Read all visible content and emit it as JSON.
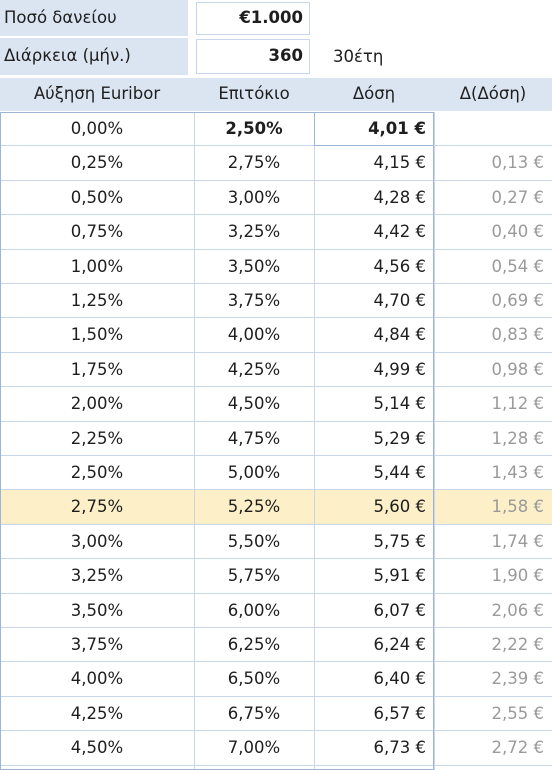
{
  "inputs": {
    "loan_label": "Ποσό δανείου",
    "loan_value": "€1.000",
    "duration_label": "Διάρκεια (μήν.)",
    "duration_value": "360",
    "duration_note": "30έτη"
  },
  "table": {
    "headers": [
      "Αύξηση Euribor",
      "Επιτόκιο",
      "Δόση",
      "Δ(Δόση)"
    ],
    "rows": [
      {
        "euribor": "0,00%",
        "rate": "2,50%",
        "payment": "4,01 €",
        "delta": ""
      },
      {
        "euribor": "0,25%",
        "rate": "2,75%",
        "payment": "4,15 €",
        "delta": "0,13 €"
      },
      {
        "euribor": "0,50%",
        "rate": "3,00%",
        "payment": "4,28 €",
        "delta": "0,27 €"
      },
      {
        "euribor": "0,75%",
        "rate": "3,25%",
        "payment": "4,42 €",
        "delta": "0,40 €"
      },
      {
        "euribor": "1,00%",
        "rate": "3,50%",
        "payment": "4,56 €",
        "delta": "0,54 €"
      },
      {
        "euribor": "1,25%",
        "rate": "3,75%",
        "payment": "4,70 €",
        "delta": "0,69 €"
      },
      {
        "euribor": "1,50%",
        "rate": "4,00%",
        "payment": "4,84 €",
        "delta": "0,83 €"
      },
      {
        "euribor": "1,75%",
        "rate": "4,25%",
        "payment": "4,99 €",
        "delta": "0,98 €"
      },
      {
        "euribor": "2,00%",
        "rate": "4,50%",
        "payment": "5,14 €",
        "delta": "1,12 €"
      },
      {
        "euribor": "2,25%",
        "rate": "4,75%",
        "payment": "5,29 €",
        "delta": "1,28 €"
      },
      {
        "euribor": "2,50%",
        "rate": "5,00%",
        "payment": "5,44 €",
        "delta": "1,43 €"
      },
      {
        "euribor": "2,75%",
        "rate": "5,25%",
        "payment": "5,60 €",
        "delta": "1,58 €"
      },
      {
        "euribor": "3,00%",
        "rate": "5,50%",
        "payment": "5,75 €",
        "delta": "1,74 €"
      },
      {
        "euribor": "3,25%",
        "rate": "5,75%",
        "payment": "5,91 €",
        "delta": "1,90 €"
      },
      {
        "euribor": "3,50%",
        "rate": "6,00%",
        "payment": "6,07 €",
        "delta": "2,06 €"
      },
      {
        "euribor": "3,75%",
        "rate": "6,25%",
        "payment": "6,24 €",
        "delta": "2,22 €"
      },
      {
        "euribor": "4,00%",
        "rate": "6,50%",
        "payment": "6,40 €",
        "delta": "2,39 €"
      },
      {
        "euribor": "4,25%",
        "rate": "6,75%",
        "payment": "6,57 €",
        "delta": "2,55 €"
      },
      {
        "euribor": "4,50%",
        "rate": "7,00%",
        "payment": "6,73 €",
        "delta": "2,72 €"
      }
    ],
    "highlight_row_index": 11,
    "highlight_color": "#fdf0c8",
    "header_color": "#dbe5f1"
  }
}
